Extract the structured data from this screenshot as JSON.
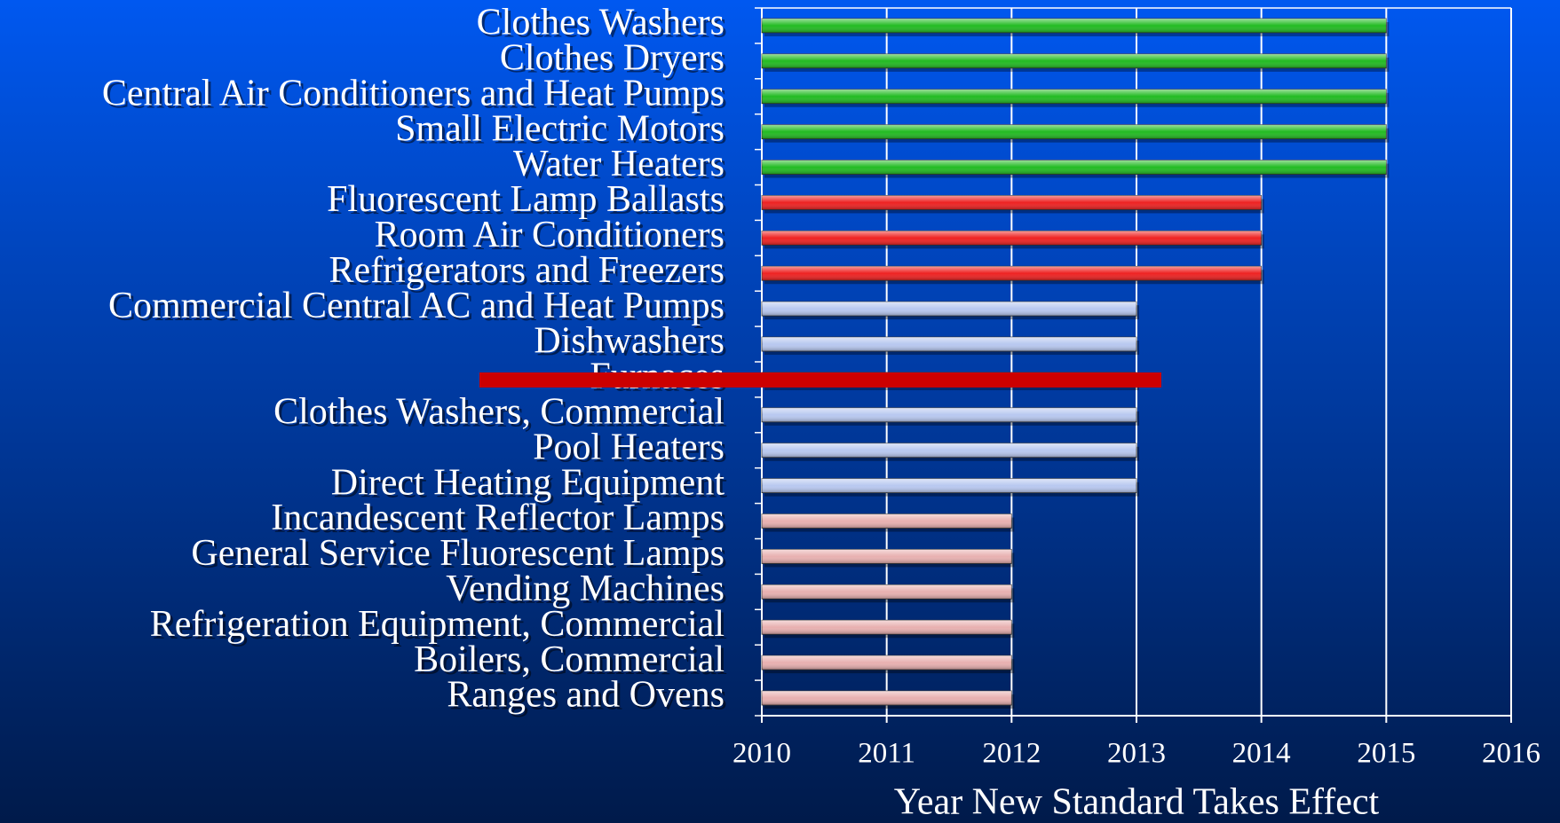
{
  "chart_data": {
    "type": "bar",
    "orientation": "horizontal",
    "categories": [
      "Clothes Washers",
      "Clothes Dryers",
      "Central Air Conditioners and Heat Pumps",
      "Small Electric Motors",
      "Water Heaters",
      "Fluorescent Lamp Ballasts",
      "Room Air Conditioners",
      "Refrigerators and Freezers",
      "Commercial Central AC and Heat Pumps",
      "Dishwashers",
      "Furnaces",
      "Clothes Washers, Commercial",
      "Pool Heaters",
      "Direct Heating Equipment",
      "Incandescent Reflector Lamps",
      "General Service Fluorescent Lamps",
      "Vending Machines",
      "Refrigeration Equipment, Commercial",
      "Boilers, Commercial",
      "Ranges and Ovens"
    ],
    "values": [
      2015,
      2015,
      2015,
      2015,
      2015,
      2014,
      2014,
      2014,
      2013,
      2013,
      2013,
      2013,
      2013,
      2013,
      2012,
      2012,
      2012,
      2012,
      2012,
      2012
    ],
    "colors": [
      "#22bb22",
      "#22bb22",
      "#22bb22",
      "#22bb22",
      "#22bb22",
      "#ee2222",
      "#ee2222",
      "#ee2222",
      "#b8c8f0",
      "#b8c8f0",
      "#b8c8f0",
      "#b8c8f0",
      "#b8c8f0",
      "#b8c8f0",
      "#e8b0b0",
      "#e8b0b0",
      "#e8b0b0",
      "#e8b0b0",
      "#e8b0b0",
      "#e8b0b0"
    ],
    "xlabel": "Year New Standard Takes Effect",
    "xlim": [
      2010,
      2016
    ],
    "xticks": [
      2010,
      2011,
      2012,
      2013,
      2014,
      2015,
      2016
    ],
    "grid": true
  }
}
